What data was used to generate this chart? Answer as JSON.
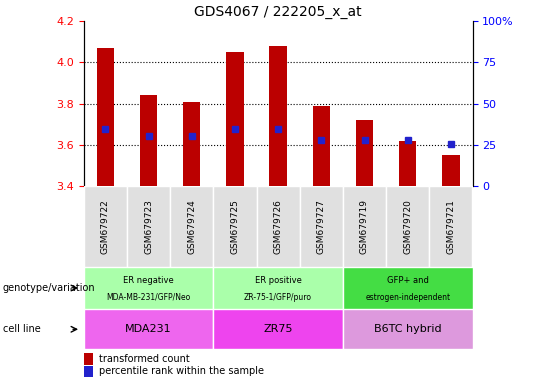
{
  "title": "GDS4067 / 222205_x_at",
  "samples": [
    "GSM679722",
    "GSM679723",
    "GSM679724",
    "GSM679725",
    "GSM679726",
    "GSM679727",
    "GSM679719",
    "GSM679720",
    "GSM679721"
  ],
  "bar_values": [
    4.07,
    3.84,
    3.81,
    4.05,
    4.08,
    3.79,
    3.72,
    3.62,
    3.55
  ],
  "percentile_values": [
    3.675,
    3.645,
    3.645,
    3.675,
    3.675,
    3.625,
    3.625,
    3.625,
    3.605
  ],
  "ylim": [
    3.4,
    4.2
  ],
  "y2lim": [
    0,
    100
  ],
  "yticks": [
    3.4,
    3.6,
    3.8,
    4.0,
    4.2
  ],
  "y2ticks": [
    0,
    25,
    50,
    75,
    100
  ],
  "bar_color": "#bb0000",
  "percentile_color": "#2222cc",
  "geno_colors": [
    "#aaffaa",
    "#aaffaa",
    "#44dd44"
  ],
  "geno_line1": [
    "ER negative",
    "ER positive",
    "GFP+ and"
  ],
  "geno_line2": [
    "MDA-MB-231/GFP/Neo",
    "ZR-75-1/GFP/puro",
    "estrogen-independent"
  ],
  "cell_colors": [
    "#ee66ee",
    "#ee44ee",
    "#dd99dd"
  ],
  "cell_labels": [
    "MDA231",
    "ZR75",
    "B6TC hybrid"
  ],
  "group_starts": [
    0,
    3,
    6
  ],
  "group_ends": [
    3,
    6,
    9
  ],
  "legend_colors": [
    "#bb0000",
    "#2222cc"
  ],
  "legend_labels": [
    "transformed count",
    "percentile rank within the sample"
  ],
  "left_row_labels": [
    "genotype/variation",
    "cell line"
  ],
  "bar_width": 0.4
}
